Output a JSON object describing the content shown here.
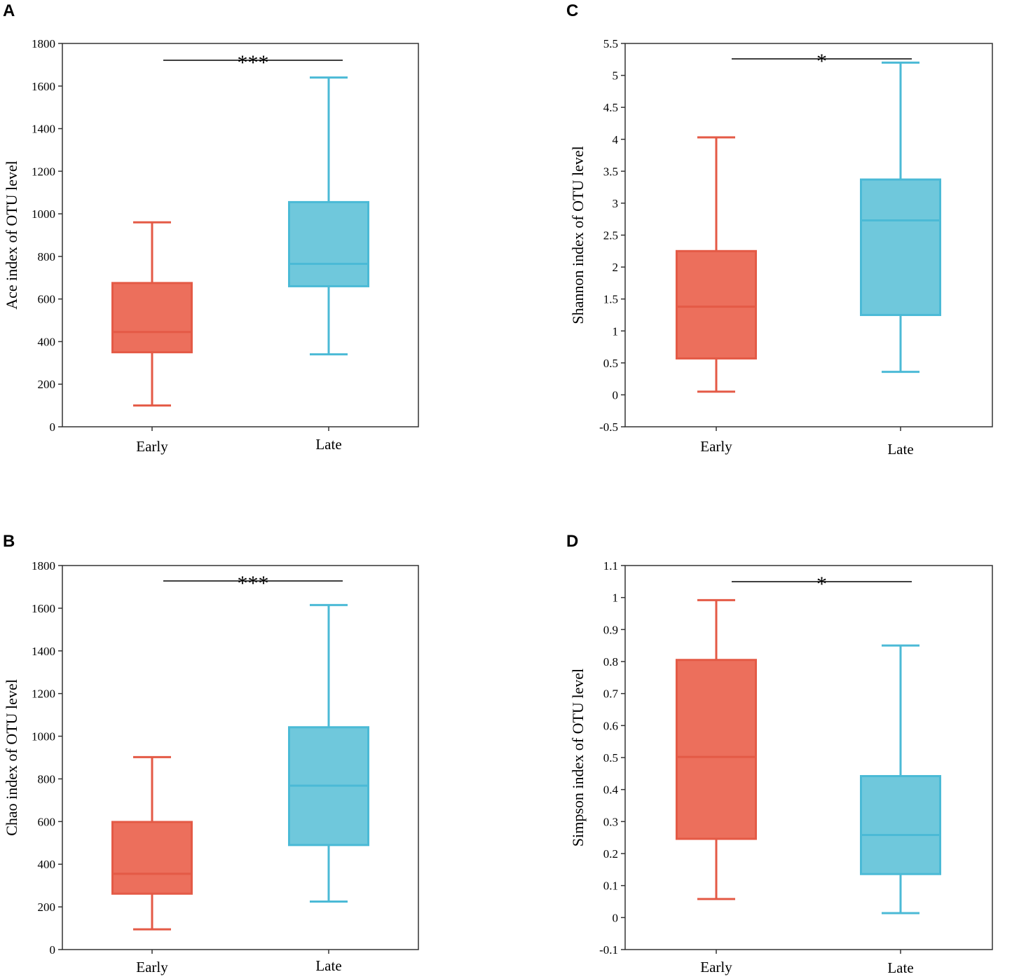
{
  "colors": {
    "early": "#e45a46",
    "early_fill": "#ec6f5c",
    "late": "#4bbad6",
    "late_fill": "#6fc8dc"
  },
  "chart_data": [
    {
      "panel": "A",
      "type": "box",
      "ylabel": "Ace index of OTU level",
      "ylim": [
        0,
        1800
      ],
      "ticks": [
        "0",
        "200",
        "400",
        "600",
        "800",
        "1000",
        "1200",
        "1400",
        "1600",
        "1800"
      ],
      "categories": [
        "Early",
        "Late"
      ],
      "boxes": [
        {
          "name": "Early",
          "min": 100,
          "q1": 350,
          "median": 445,
          "q3": 675,
          "max": 960
        },
        {
          "name": "Late",
          "min": 340,
          "q1": 660,
          "median": 765,
          "q3": 1055,
          "max": 1640
        }
      ],
      "significance": "***"
    },
    {
      "panel": "B",
      "type": "box",
      "ylabel": "Chao index of OTU level",
      "ylim": [
        0,
        1800
      ],
      "ticks": [
        "0",
        "200",
        "400",
        "600",
        "800",
        "1000",
        "1200",
        "1400",
        "1600",
        "1800"
      ],
      "categories": [
        "Early",
        "Late"
      ],
      "boxes": [
        {
          "name": "Early",
          "min": 95,
          "q1": 262,
          "median": 355,
          "q3": 598,
          "max": 902
        },
        {
          "name": "Late",
          "min": 225,
          "q1": 490,
          "median": 768,
          "q3": 1042,
          "max": 1615
        }
      ],
      "significance": "***"
    },
    {
      "panel": "C",
      "type": "box",
      "ylabel": "Shannon index of OTU level",
      "ylim": [
        -0.5,
        5.5
      ],
      "ticks": [
        "-0.5",
        "0",
        "0.5",
        "1",
        "1.5",
        "2",
        "2.5",
        "3",
        "3.5",
        "4",
        "4.5",
        "5",
        "5.5"
      ],
      "categories": [
        "Early",
        "Late"
      ],
      "boxes": [
        {
          "name": "Early",
          "min": 0.05,
          "q1": 0.57,
          "median": 1.38,
          "q3": 2.25,
          "max": 4.03
        },
        {
          "name": "Late",
          "min": 0.36,
          "q1": 1.25,
          "median": 2.73,
          "q3": 3.37,
          "max": 5.2
        }
      ],
      "significance": "*"
    },
    {
      "panel": "D",
      "type": "box",
      "ylabel": "Simpson index of OTU level",
      "ylim": [
        -0.1,
        1.1
      ],
      "ticks": [
        "-0.1",
        "0",
        "0.1",
        "0.2",
        "0.3",
        "0.4",
        "0.5",
        "0.6",
        "0.7",
        "0.8",
        "0.9",
        "1",
        "1.1"
      ],
      "categories": [
        "Early",
        "Late"
      ],
      "boxes": [
        {
          "name": "Early",
          "min": 0.058,
          "q1": 0.246,
          "median": 0.502,
          "q3": 0.805,
          "max": 0.992
        },
        {
          "name": "Late",
          "min": 0.014,
          "q1": 0.136,
          "median": 0.258,
          "q3": 0.442,
          "max": 0.85
        }
      ],
      "significance": "*"
    }
  ]
}
